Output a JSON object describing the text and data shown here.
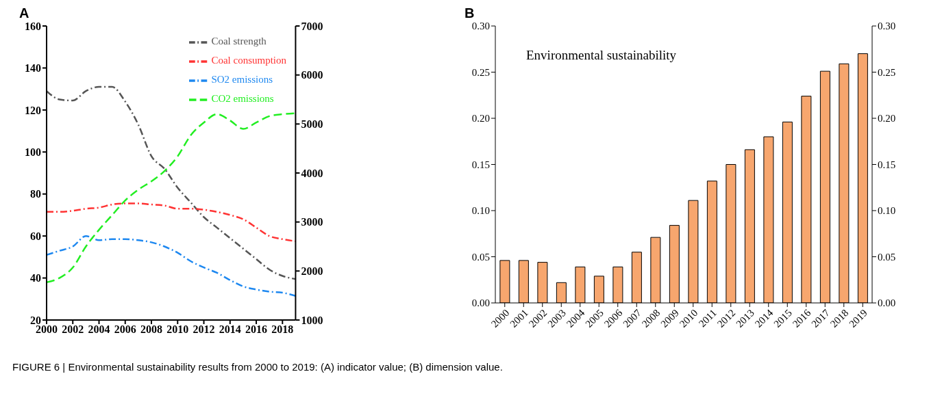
{
  "chart_data": [
    {
      "type": "line",
      "title": "A",
      "x": [
        2000,
        2001,
        2002,
        2003,
        2004,
        2005,
        2006,
        2007,
        2008,
        2009,
        2010,
        2011,
        2012,
        2013,
        2014,
        2015,
        2016,
        2017,
        2018,
        2019
      ],
      "xlim": [
        2000,
        2019
      ],
      "xticks": [
        2000,
        2002,
        2004,
        2006,
        2008,
        2010,
        2012,
        2014,
        2016,
        2018
      ],
      "ylim": [
        20,
        160
      ],
      "yticks": [
        20,
        40,
        60,
        80,
        100,
        120,
        140,
        160
      ],
      "y2lim": [
        1000,
        7000
      ],
      "y2ticks": [
        1000,
        2000,
        3000,
        4000,
        5000,
        6000,
        7000
      ],
      "legend": "top right",
      "grid": false,
      "marker": "none",
      "series": [
        {
          "name": "Coal strength",
          "color": "#555555",
          "line_style": "dashdot",
          "values": [
            129,
            125,
            124.5,
            129,
            131,
            131,
            124,
            113,
            98,
            92,
            83,
            76,
            69,
            64,
            59,
            54,
            49,
            44,
            41,
            39.5
          ]
        },
        {
          "name": "Coal consumption",
          "color": "#ff3333",
          "line_style": "dashdot",
          "values": [
            71.5,
            71.5,
            72,
            73,
            73.5,
            75,
            75.5,
            75.5,
            75,
            74.5,
            73,
            73,
            72.5,
            71.5,
            70,
            68,
            64,
            60,
            58.5,
            57.5
          ]
        },
        {
          "name": "SO2 emissions",
          "color": "#1e88f0",
          "line_style": "dashdot",
          "values": [
            51,
            53,
            55,
            60,
            58,
            58.5,
            58.5,
            58,
            57,
            55,
            52,
            48,
            45,
            42.5,
            39,
            36,
            34.5,
            33.5,
            33,
            31.5
          ]
        },
        {
          "name": "CO2 emissions",
          "color": "#22ee22",
          "line_style": "dashed",
          "axis": "y2",
          "values": [
            1770,
            1860,
            2070,
            2500,
            2840,
            3140,
            3440,
            3660,
            3830,
            4040,
            4340,
            4770,
            5030,
            5200,
            5070,
            4900,
            5030,
            5160,
            5200,
            5220
          ]
        }
      ],
      "annotations": [
        "FIGURE 6 | Environmental sustainability results from 2000 to 2019: (A) indicator value; (B) dimension value."
      ]
    },
    {
      "type": "bar",
      "title": "B",
      "categories": [
        "2000",
        "2001",
        "2002",
        "2003",
        "2004",
        "2005",
        "2006",
        "2007",
        "2008",
        "2009",
        "2010",
        "2011",
        "2012",
        "2013",
        "2014",
        "2015",
        "2016",
        "2017",
        "2018",
        "2019"
      ],
      "values": [
        0.046,
        0.046,
        0.044,
        0.022,
        0.039,
        0.029,
        0.039,
        0.055,
        0.071,
        0.084,
        0.111,
        0.132,
        0.15,
        0.166,
        0.18,
        0.196,
        0.224,
        0.251,
        0.259,
        0.27
      ],
      "color": "#f7a66e",
      "ylim": [
        0,
        0.3
      ],
      "yticks": [
        {
          "value": 0,
          "label": "0.00"
        },
        {
          "value": 0.05,
          "label": "0.05"
        },
        {
          "value": 0.1,
          "label": "0.10"
        },
        {
          "value": 0.15,
          "label": "0.15"
        },
        {
          "value": 0.2,
          "label": "0.20"
        },
        {
          "value": 0.25,
          "label": "0.25"
        },
        {
          "value": 0.3,
          "label": "0.30"
        }
      ],
      "y2lim": [
        0,
        0.3
      ],
      "y2ticks": [
        {
          "value": 0,
          "label": "0.00"
        },
        {
          "value": 0.05,
          "label": "0.05"
        },
        {
          "value": 0.1,
          "label": "0.10"
        },
        {
          "value": 0.15,
          "label": "0.15"
        },
        {
          "value": 0.2,
          "label": "0.20"
        },
        {
          "value": 0.25,
          "label": "0.25"
        },
        {
          "value": 0.3,
          "label": "0.30"
        }
      ],
      "grid": false,
      "annotations": [
        "Environmental sustainability"
      ]
    }
  ]
}
